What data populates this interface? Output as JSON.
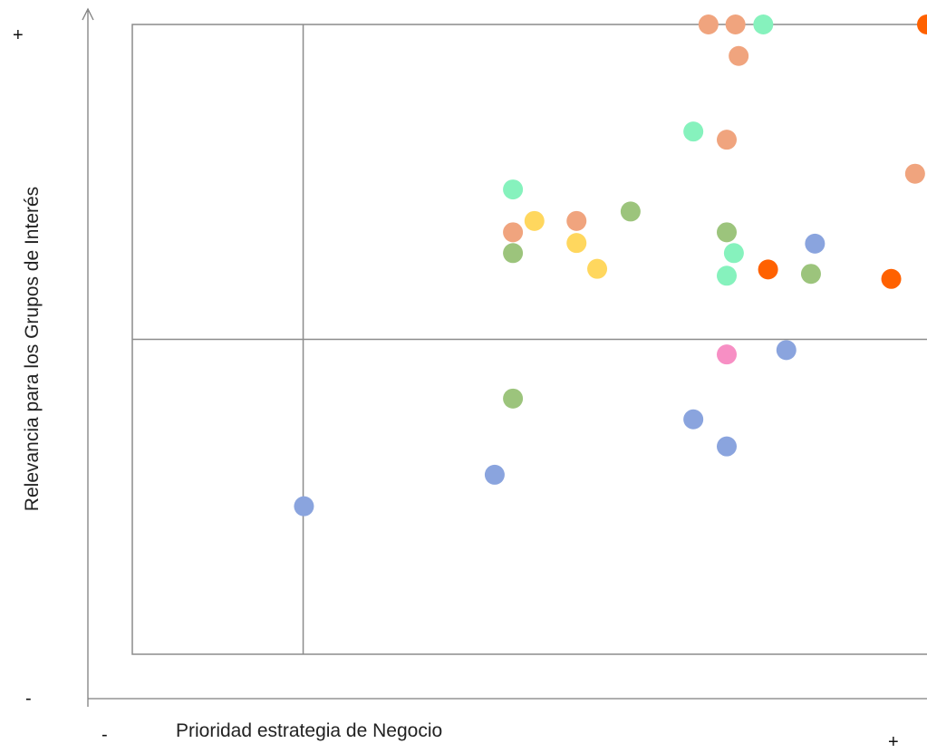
{
  "chart_data": {
    "type": "scatter",
    "xlabel": "Prioridad estrategia de Negocio",
    "ylabel": "Relevancia para los Grupos de Interés",
    "x_axis_markers": {
      "low": "-",
      "high": "+"
    },
    "y_axis_markers": {
      "low": "-",
      "high": "+"
    },
    "xlim": [
      0,
      100
    ],
    "ylim": [
      0,
      100
    ],
    "quadrant_divider": {
      "x": 21.5,
      "y": 50
    },
    "grid": false,
    "colors": {
      "orange_light": "#f0a47e",
      "orange_dark": "#ff6100",
      "mint": "#86f2bd",
      "green": "#9cc47c",
      "yellow": "#ffd75e",
      "blue": "#8aa4de",
      "pink": "#f78fc4"
    },
    "points": [
      {
        "x": 72.5,
        "y": 100,
        "color": "orange_light"
      },
      {
        "x": 75.9,
        "y": 100,
        "color": "orange_light"
      },
      {
        "x": 79.4,
        "y": 100,
        "color": "mint"
      },
      {
        "x": 100,
        "y": 100,
        "color": "orange_dark"
      },
      {
        "x": 76.3,
        "y": 95.0,
        "color": "orange_light"
      },
      {
        "x": 70.6,
        "y": 83.0,
        "color": "mint"
      },
      {
        "x": 74.8,
        "y": 81.7,
        "color": "orange_light"
      },
      {
        "x": 98.5,
        "y": 76.3,
        "color": "orange_light"
      },
      {
        "x": 47.9,
        "y": 73.8,
        "color": "mint"
      },
      {
        "x": 47.9,
        "y": 67.0,
        "color": "orange_light"
      },
      {
        "x": 50.6,
        "y": 68.8,
        "color": "yellow"
      },
      {
        "x": 55.9,
        "y": 68.8,
        "color": "orange_light"
      },
      {
        "x": 62.7,
        "y": 70.3,
        "color": "green"
      },
      {
        "x": 47.9,
        "y": 63.7,
        "color": "green"
      },
      {
        "x": 55.9,
        "y": 65.3,
        "color": "yellow"
      },
      {
        "x": 58.5,
        "y": 61.2,
        "color": "yellow"
      },
      {
        "x": 74.8,
        "y": 67.0,
        "color": "green"
      },
      {
        "x": 75.7,
        "y": 63.7,
        "color": "mint"
      },
      {
        "x": 74.8,
        "y": 60.1,
        "color": "mint"
      },
      {
        "x": 85.9,
        "y": 65.2,
        "color": "blue"
      },
      {
        "x": 85.4,
        "y": 60.4,
        "color": "green"
      },
      {
        "x": 80.0,
        "y": 61.1,
        "color": "orange_dark"
      },
      {
        "x": 95.5,
        "y": 59.6,
        "color": "orange_dark"
      },
      {
        "x": 74.8,
        "y": 47.6,
        "color": "pink"
      },
      {
        "x": 82.3,
        "y": 48.3,
        "color": "blue"
      },
      {
        "x": 47.9,
        "y": 40.6,
        "color": "green"
      },
      {
        "x": 70.6,
        "y": 37.3,
        "color": "blue"
      },
      {
        "x": 74.8,
        "y": 33.0,
        "color": "blue"
      },
      {
        "x": 45.6,
        "y": 28.5,
        "color": "blue"
      },
      {
        "x": 21.6,
        "y": 23.5,
        "color": "blue"
      }
    ]
  }
}
